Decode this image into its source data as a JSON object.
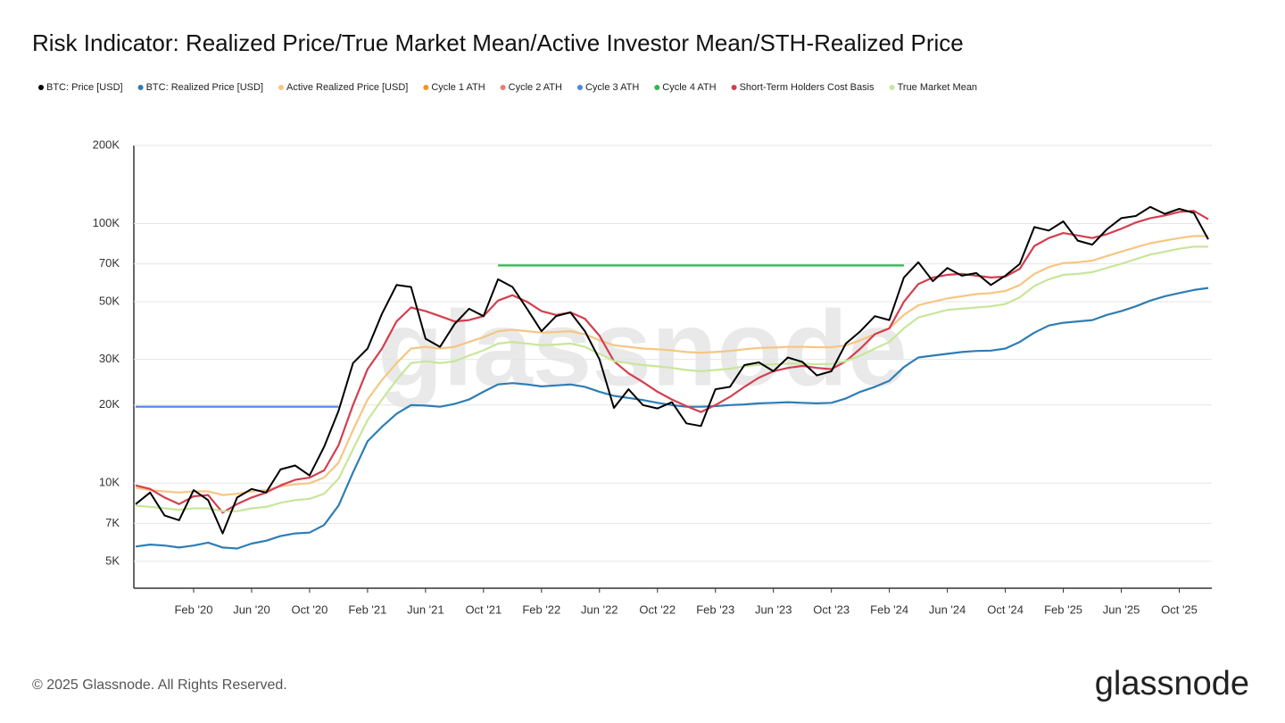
{
  "chart_data": {
    "type": "line",
    "title": "Risk Indicator: Realized Price/True Market Mean/Active Investor Mean/STH-Realized Price",
    "watermark": "glassnode",
    "footer": "© 2025 Glassnode. All Rights Reserved.",
    "logo": "glassnode",
    "log_scale": true,
    "grid": true,
    "legend": "top-left",
    "x": [
      "2019-10",
      "2019-11",
      "2019-12",
      "2020-01",
      "2020-02",
      "2020-03",
      "2020-04",
      "2020-05",
      "2020-06",
      "2020-07",
      "2020-08",
      "2020-09",
      "2020-10",
      "2020-11",
      "2020-12",
      "2021-01",
      "2021-02",
      "2021-03",
      "2021-04",
      "2021-05",
      "2021-06",
      "2021-07",
      "2021-08",
      "2021-09",
      "2021-10",
      "2021-11",
      "2021-12",
      "2022-01",
      "2022-02",
      "2022-03",
      "2022-04",
      "2022-05",
      "2022-06",
      "2022-07",
      "2022-08",
      "2022-09",
      "2022-10",
      "2022-11",
      "2022-12",
      "2023-01",
      "2023-02",
      "2023-03",
      "2023-04",
      "2023-05",
      "2023-06",
      "2023-07",
      "2023-08",
      "2023-09",
      "2023-10",
      "2023-11",
      "2023-12",
      "2024-01",
      "2024-02",
      "2024-03",
      "2024-04",
      "2024-05",
      "2024-06",
      "2024-07",
      "2024-08",
      "2024-09",
      "2024-10",
      "2024-11",
      "2024-12",
      "2025-01",
      "2025-02",
      "2025-03",
      "2025-04",
      "2025-05",
      "2025-06",
      "2025-07",
      "2025-08",
      "2025-09",
      "2025-10",
      "2025-11",
      "2025-12"
    ],
    "xlim": [
      "2019-10",
      "2025-12"
    ],
    "xticks": [
      {
        "value": "2020-02",
        "label": "Feb '20"
      },
      {
        "value": "2020-06",
        "label": "Jun '20"
      },
      {
        "value": "2020-10",
        "label": "Oct '20"
      },
      {
        "value": "2021-02",
        "label": "Feb '21"
      },
      {
        "value": "2021-06",
        "label": "Jun '21"
      },
      {
        "value": "2021-10",
        "label": "Oct '21"
      },
      {
        "value": "2022-02",
        "label": "Feb '22"
      },
      {
        "value": "2022-06",
        "label": "Jun '22"
      },
      {
        "value": "2022-10",
        "label": "Oct '22"
      },
      {
        "value": "2023-02",
        "label": "Feb '23"
      },
      {
        "value": "2023-06",
        "label": "Jun '23"
      },
      {
        "value": "2023-10",
        "label": "Oct '23"
      },
      {
        "value": "2024-02",
        "label": "Feb '24"
      },
      {
        "value": "2024-06",
        "label": "Jun '24"
      },
      {
        "value": "2024-10",
        "label": "Oct '24"
      },
      {
        "value": "2025-02",
        "label": "Feb '25"
      },
      {
        "value": "2025-06",
        "label": "Jun '25"
      },
      {
        "value": "2025-10",
        "label": "Oct '25"
      }
    ],
    "ylim": [
      4000,
      200000
    ],
    "yticks": [
      {
        "value": 5000,
        "label": "5K"
      },
      {
        "value": 7000,
        "label": "7K"
      },
      {
        "value": 10000,
        "label": "10K"
      },
      {
        "value": 20000,
        "label": "20K"
      },
      {
        "value": 30000,
        "label": "30K"
      },
      {
        "value": 50000,
        "label": "50K"
      },
      {
        "value": 70000,
        "label": "70K"
      },
      {
        "value": 100000,
        "label": "100K"
      },
      {
        "value": 200000,
        "label": "200K"
      }
    ],
    "series": [
      {
        "name": "BTC: Price [USD]",
        "color": "#000000",
        "values": [
          8300,
          9200,
          7500,
          7200,
          9400,
          8600,
          6400,
          8800,
          9500,
          9200,
          11300,
          11700,
          10700,
          13800,
          19000,
          29000,
          33000,
          45000,
          58000,
          57000,
          36000,
          33500,
          41000,
          47000,
          44000,
          61000,
          57000,
          47000,
          38500,
          44000,
          45500,
          38500,
          30000,
          19500,
          23000,
          20000,
          19400,
          20500,
          17000,
          16600,
          23000,
          23500,
          28500,
          29200,
          27000,
          30500,
          29300,
          26000,
          27000,
          34500,
          38500,
          44000,
          42500,
          62000,
          71000,
          60000,
          67500,
          63000,
          64500,
          58000,
          63000,
          70000,
          97000,
          94000,
          102000,
          86000,
          83000,
          95000,
          105000,
          107000,
          116000,
          109000,
          114000,
          110000,
          87000
        ]
      },
      {
        "name": "BTC: Realized Price [USD]",
        "color": "#2e7db5",
        "values": [
          5700,
          5800,
          5750,
          5650,
          5750,
          5900,
          5650,
          5600,
          5850,
          6000,
          6250,
          6400,
          6450,
          6900,
          8200,
          11000,
          14500,
          16500,
          18500,
          20000,
          19900,
          19700,
          20200,
          21000,
          22500,
          24000,
          24300,
          24000,
          23600,
          23800,
          24000,
          23500,
          22500,
          21700,
          21300,
          20900,
          20400,
          20000,
          19700,
          19700,
          19800,
          20000,
          20100,
          20300,
          20400,
          20500,
          20400,
          20300,
          20400,
          21200,
          22500,
          23500,
          24800,
          28000,
          30500,
          31000,
          31500,
          32000,
          32300,
          32400,
          33000,
          35000,
          38000,
          40500,
          41500,
          42000,
          42500,
          44500,
          46000,
          48000,
          50500,
          52500,
          54000,
          55500,
          56500
        ]
      },
      {
        "name": "Active Realized Price [USD]",
        "color": "#f6c682",
        "values": [
          9600,
          9400,
          9300,
          9200,
          9300,
          9300,
          9000,
          9100,
          9300,
          9400,
          9700,
          9900,
          10000,
          10500,
          12000,
          16000,
          21000,
          25000,
          29000,
          33000,
          33500,
          33000,
          33500,
          35000,
          36500,
          38500,
          39000,
          38500,
          38000,
          38200,
          38500,
          37500,
          35500,
          34000,
          33500,
          33000,
          32800,
          32500,
          32000,
          31800,
          32000,
          32300,
          32800,
          33200,
          33300,
          33500,
          33500,
          33400,
          33400,
          34000,
          35500,
          37500,
          39500,
          44500,
          48500,
          50000,
          51500,
          52500,
          53500,
          54000,
          55000,
          58000,
          64000,
          68000,
          70500,
          71000,
          72000,
          75000,
          78000,
          81000,
          84000,
          86000,
          88000,
          89500,
          89500
        ]
      },
      {
        "name": "Cycle 1 ATH",
        "color": "#f7931a"
      },
      {
        "name": "Cycle 2 ATH",
        "color": "#f07c6c"
      },
      {
        "name": "Cycle 3 ATH",
        "color": "#4a86e8",
        "values": [
          19700,
          19700,
          19700,
          19700,
          19700,
          19700,
          19700,
          19700,
          19700,
          19700,
          19700,
          19700,
          19700,
          19700,
          19700,
          null,
          null,
          null,
          null,
          null,
          null,
          null,
          null,
          null,
          null,
          null,
          null,
          null,
          null,
          null,
          null,
          null,
          null,
          null,
          null,
          null,
          null,
          null,
          null,
          null,
          null,
          null,
          null,
          null,
          null,
          null,
          null,
          null,
          null,
          null,
          null,
          null,
          null,
          null,
          null,
          null,
          null,
          null,
          null,
          null,
          null,
          null,
          null,
          null,
          null,
          null,
          null,
          null,
          null,
          null,
          null,
          null,
          null,
          null,
          null
        ]
      },
      {
        "name": "Cycle 4 ATH",
        "color": "#2db84d",
        "values": [
          null,
          null,
          null,
          null,
          null,
          null,
          null,
          null,
          null,
          null,
          null,
          null,
          null,
          null,
          null,
          null,
          null,
          null,
          null,
          null,
          null,
          null,
          null,
          null,
          null,
          69000,
          69000,
          69000,
          69000,
          69000,
          69000,
          69000,
          69000,
          69000,
          69000,
          69000,
          69000,
          69000,
          69000,
          69000,
          69000,
          69000,
          69000,
          69000,
          69000,
          69000,
          69000,
          69000,
          69000,
          69000,
          69000,
          69000,
          69000,
          69000,
          null,
          null,
          null,
          null,
          null,
          null,
          null,
          null,
          null,
          null,
          null,
          null,
          null,
          null,
          null,
          null,
          null,
          null,
          null,
          null,
          null
        ]
      },
      {
        "name": "Short-Term Holders Cost Basis",
        "color": "#d33f4f",
        "values": [
          9800,
          9500,
          8800,
          8300,
          8900,
          9000,
          7700,
          8300,
          8800,
          9200,
          9800,
          10300,
          10500,
          11200,
          14000,
          20000,
          27500,
          33000,
          42000,
          47500,
          46000,
          44000,
          42000,
          42500,
          44000,
          50500,
          53000,
          50000,
          46000,
          44500,
          45500,
          43000,
          37000,
          29500,
          26500,
          24500,
          22500,
          21000,
          19800,
          18800,
          20000,
          21500,
          23500,
          25500,
          27000,
          27800,
          28300,
          27800,
          27500,
          29500,
          33000,
          37500,
          39500,
          50000,
          58500,
          62000,
          63500,
          64000,
          63000,
          62000,
          62500,
          67000,
          82000,
          88000,
          92000,
          90000,
          88000,
          91000,
          95500,
          101000,
          105000,
          107500,
          111000,
          112000,
          104000
        ]
      },
      {
        "name": "True Market Mean",
        "color": "#c8e69a",
        "values": [
          8200,
          8100,
          8000,
          7900,
          8000,
          8000,
          7800,
          7800,
          8000,
          8100,
          8400,
          8600,
          8700,
          9100,
          10400,
          13500,
          17500,
          21000,
          25000,
          29000,
          29500,
          29000,
          29500,
          31000,
          32500,
          34500,
          35000,
          34500,
          34000,
          34200,
          34500,
          33500,
          31500,
          29500,
          29000,
          28500,
          28200,
          27800,
          27300,
          27000,
          27300,
          27600,
          28200,
          28600,
          28700,
          28900,
          28900,
          28700,
          28800,
          29500,
          31000,
          33000,
          35000,
          39500,
          43500,
          45000,
          46500,
          47000,
          47500,
          48000,
          49000,
          52000,
          57500,
          61000,
          63500,
          64000,
          65000,
          67500,
          70000,
          73000,
          76000,
          78000,
          80000,
          81500,
          81500
        ]
      }
    ]
  }
}
